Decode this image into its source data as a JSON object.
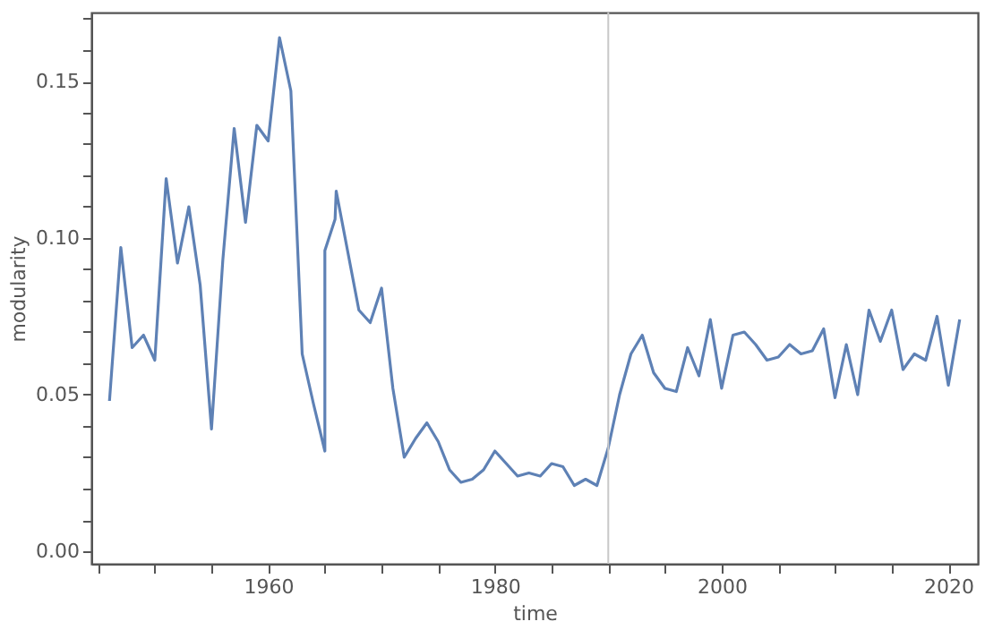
{
  "chart_data": {
    "type": "line",
    "xlabel": "time",
    "ylabel": "modularity",
    "x": [
      1946,
      1947,
      1948,
      1949,
      1950,
      1951,
      1952,
      1953,
      1954,
      1955,
      1956,
      1957,
      1958,
      1959,
      1960,
      1961,
      1962,
      1963,
      1964,
      1965,
      1965,
      1965.9,
      1966,
      1967,
      1968,
      1969,
      1970,
      1971,
      1972,
      1973,
      1974,
      1975,
      1976,
      1977,
      1978,
      1979,
      1980,
      1981,
      1982,
      1983,
      1984,
      1985,
      1986,
      1987,
      1988,
      1989,
      1990,
      1991,
      1992,
      1993,
      1994,
      1995,
      1996,
      1997,
      1998,
      1999,
      2000,
      2001,
      2002,
      2003,
      2004,
      2005,
      2006,
      2007,
      2008,
      2009,
      2010,
      2011,
      2012,
      2013,
      2014,
      2015,
      2016,
      2017,
      2018,
      2019,
      2020,
      2021
    ],
    "series": [
      {
        "color": "#5e81b5",
        "values": [
          0.048,
          0.097,
          0.065,
          0.069,
          0.061,
          0.119,
          0.092,
          0.11,
          0.085,
          0.039,
          0.093,
          0.135,
          0.105,
          0.136,
          0.131,
          0.164,
          0.147,
          0.063,
          0.047,
          0.032,
          0.096,
          0.106,
          0.115,
          0.096,
          0.077,
          0.073,
          0.084,
          0.052,
          0.03,
          0.036,
          0.041,
          0.035,
          0.026,
          0.022,
          0.023,
          0.026,
          0.032,
          0.028,
          0.024,
          0.025,
          0.024,
          0.028,
          0.027,
          0.021,
          0.023,
          0.021,
          0.033,
          0.05,
          0.063,
          0.069,
          0.057,
          0.052,
          0.051,
          0.065,
          0.056,
          0.074,
          0.052,
          0.069,
          0.07,
          0.066,
          0.061,
          0.062,
          0.066,
          0.063,
          0.064,
          0.071,
          0.049,
          0.066,
          0.05,
          0.077,
          0.067,
          0.077,
          0.058,
          0.063,
          0.061,
          0.075,
          0.053,
          0.074
        ]
      }
    ],
    "xlim": [
      1944.4,
      2022.6
    ],
    "xticks": [
      {
        "value": 1945,
        "label": null
      },
      {
        "value": 1950,
        "label": null
      },
      {
        "value": 1955,
        "label": null
      },
      1960,
      {
        "value": 1965,
        "label": null
      },
      {
        "value": 1970,
        "label": null
      },
      {
        "value": 1975,
        "label": null
      },
      1980,
      {
        "value": 1985,
        "label": null
      },
      {
        "value": 1990,
        "label": null
      },
      {
        "value": 1995,
        "label": null
      },
      2000,
      {
        "value": 2005,
        "label": null
      },
      {
        "value": 2010,
        "label": null
      },
      {
        "value": 2015,
        "label": null
      },
      2020
    ],
    "ylim": [
      -0.004,
      0.172
    ],
    "yticks": [
      {
        "value": 0,
        "label": "0.00"
      },
      {
        "value": 0.01,
        "label": null
      },
      {
        "value": 0.02,
        "label": null
      },
      {
        "value": 0.03,
        "label": null
      },
      {
        "value": 0.04,
        "label": null
      },
      {
        "value": 0.05,
        "label": "0.05"
      },
      {
        "value": 0.06,
        "label": null
      },
      {
        "value": 0.07,
        "label": null
      },
      {
        "value": 0.08,
        "label": null
      },
      {
        "value": 0.09,
        "label": null
      },
      {
        "value": 0.1,
        "label": "0.10"
      },
      {
        "value": 0.11,
        "label": null
      },
      {
        "value": 0.12,
        "label": null
      },
      {
        "value": 0.13,
        "label": null
      },
      {
        "value": 0.14,
        "label": null
      },
      {
        "value": 0.15,
        "label": "0.15"
      },
      {
        "value": 0.16,
        "label": null
      },
      {
        "value": 0.17,
        "label": null
      }
    ],
    "ref_lines": [
      {
        "axis": "x",
        "value": 1990,
        "color": "#c8c8c8"
      }
    ],
    "grid": false,
    "marker": "none",
    "line_style": "solid"
  }
}
